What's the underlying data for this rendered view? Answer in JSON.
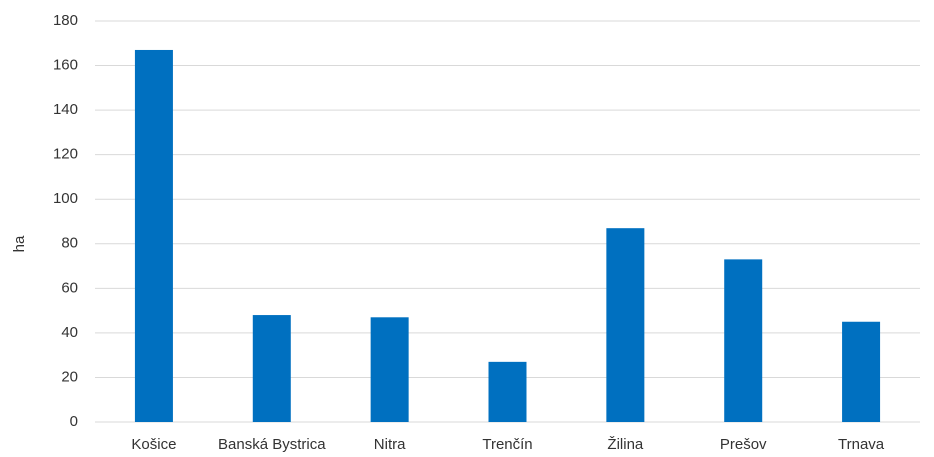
{
  "chart_data": {
    "type": "bar",
    "title": "",
    "xlabel": "",
    "ylabel": "ha",
    "categories": [
      "Košice",
      "Banská Bystrica",
      "Nitra",
      "Trenčín",
      "Žilina",
      "Prešov",
      "Trnava"
    ],
    "values": [
      167,
      48,
      47,
      27,
      87,
      73,
      45
    ],
    "ylim": [
      0,
      180
    ],
    "yticks": [
      0,
      20,
      40,
      60,
      80,
      100,
      120,
      140,
      160,
      180
    ],
    "grid": true,
    "legend": "none",
    "bar_color": "#0070c0"
  }
}
